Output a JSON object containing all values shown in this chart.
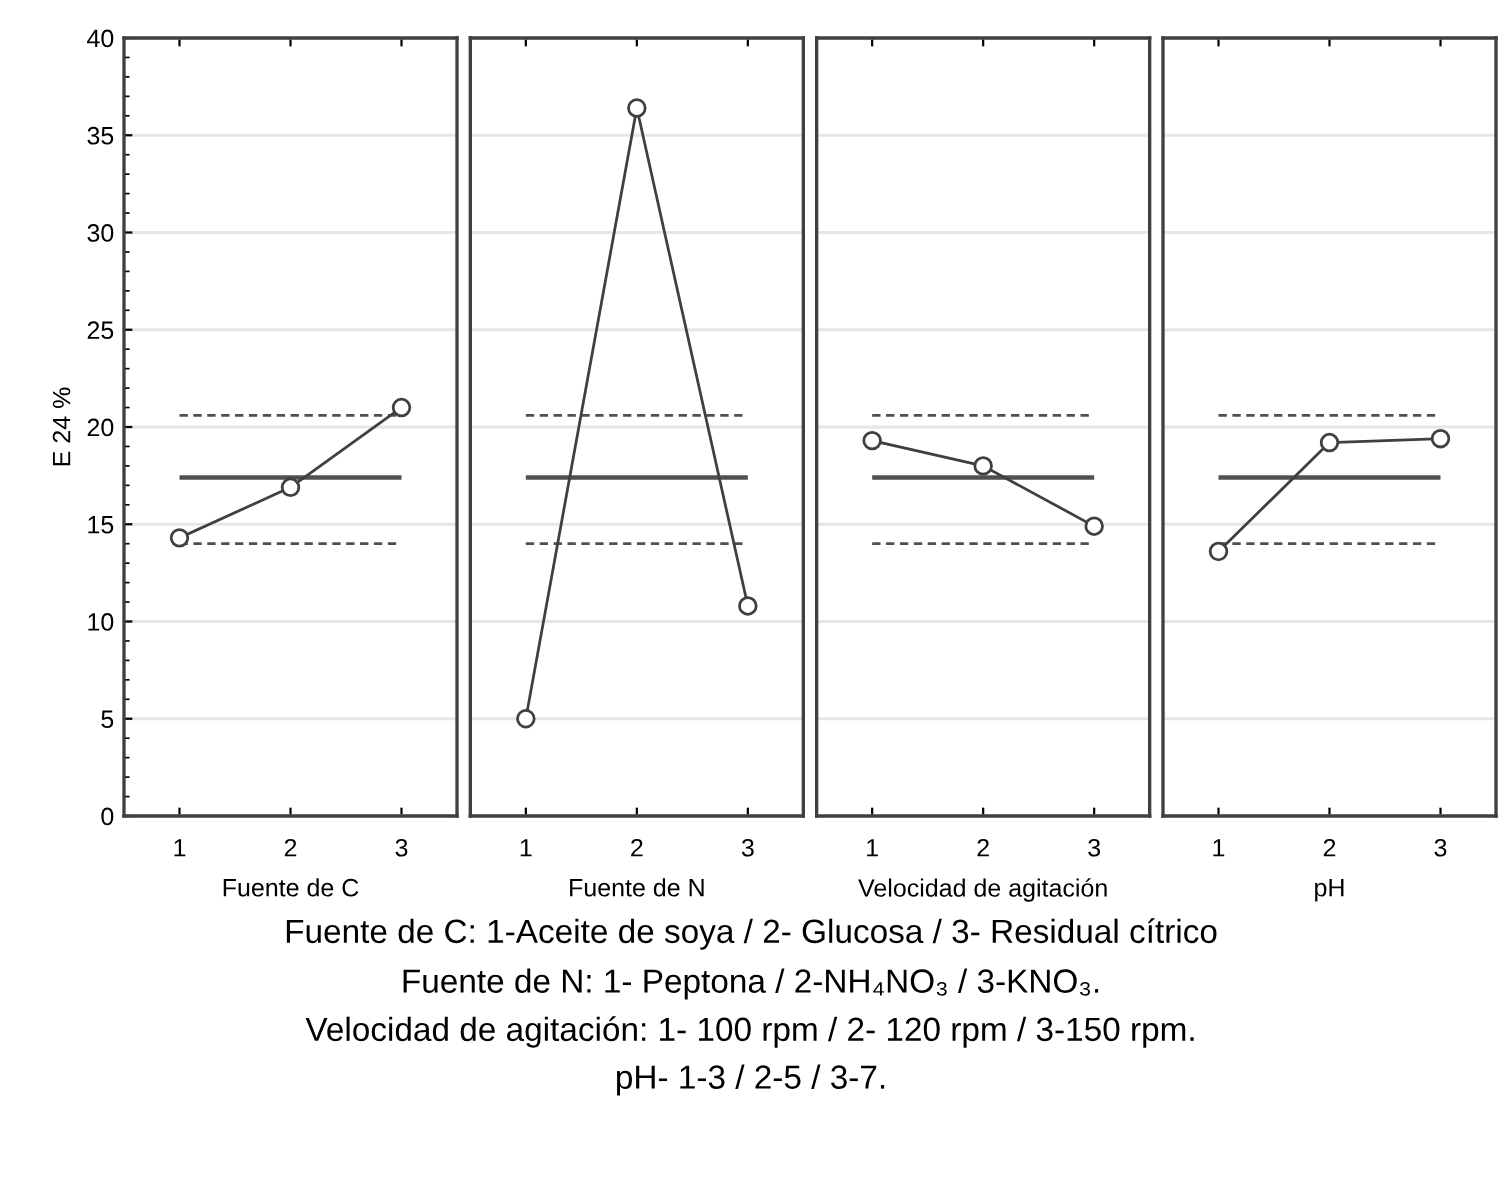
{
  "chart_data": [
    {
      "type": "line",
      "xlabel": "Fuente de C",
      "ylabel": "E 24 %",
      "categories": [
        "1",
        "2",
        "3"
      ],
      "series": [
        {
          "color": "#404040",
          "values": [
            14.3,
            16.9,
            21.0
          ]
        }
      ],
      "ylim": [
        0,
        40
      ],
      "yticks": [
        0,
        5,
        10,
        15,
        20,
        25,
        30,
        35,
        40
      ],
      "grid": "y",
      "marker": "circle",
      "line_style": "solid",
      "ref_lines": [
        {
          "axis": "y",
          "value": 17.4,
          "color": "#505050",
          "line_style": "solid"
        },
        {
          "axis": "y",
          "value": 20.6,
          "color": "#505050",
          "line_style": "dashed"
        },
        {
          "axis": "y",
          "value": 14.0,
          "color": "#505050",
          "line_style": "dashed"
        }
      ],
      "annotations": [
        "Fuente de C: 1-Aceite de soya / 2- Glucosa / 3- Residual cítrico",
        "Fuente de N: 1- Peptona / 2-NH₄NO₃ / 3-KNO₃.",
        "Velocidad de agitación: 1- 100 rpm / 2- 120 rpm / 3-150 rpm.",
        "pH- 1-3 / 2-5 / 3-7."
      ]
    },
    {
      "type": "line",
      "xlabel": "Fuente de N",
      "categories": [
        "1",
        "2",
        "3"
      ],
      "series": [
        {
          "color": "#404040",
          "values": [
            5.0,
            36.4,
            10.8
          ]
        }
      ],
      "ylim": [
        0,
        40
      ],
      "yticks": [
        0,
        5,
        10,
        15,
        20,
        25,
        30,
        35,
        40
      ],
      "tick_labels": "x",
      "grid": "y",
      "marker": "circle",
      "line_style": "solid",
      "ref_lines": [
        {
          "axis": "y",
          "value": 17.4,
          "color": "#505050",
          "line_style": "solid"
        },
        {
          "axis": "y",
          "value": 20.6,
          "color": "#505050",
          "line_style": "dashed"
        },
        {
          "axis": "y",
          "value": 14.0,
          "color": "#505050",
          "line_style": "dashed"
        }
      ]
    },
    {
      "type": "line",
      "xlabel": "Velocidad de agitación",
      "categories": [
        "1",
        "2",
        "3"
      ],
      "series": [
        {
          "color": "#404040",
          "values": [
            19.3,
            18.0,
            14.9
          ]
        }
      ],
      "ylim": [
        0,
        40
      ],
      "yticks": [
        0,
        5,
        10,
        15,
        20,
        25,
        30,
        35,
        40
      ],
      "tick_labels": "x",
      "grid": "y",
      "marker": "circle",
      "line_style": "solid",
      "ref_lines": [
        {
          "axis": "y",
          "value": 17.4,
          "color": "#505050",
          "line_style": "solid"
        },
        {
          "axis": "y",
          "value": 20.6,
          "color": "#505050",
          "line_style": "dashed"
        },
        {
          "axis": "y",
          "value": 14.0,
          "color": "#505050",
          "line_style": "dashed"
        }
      ]
    },
    {
      "type": "line",
      "xlabel": "pH",
      "categories": [
        "1",
        "2",
        "3"
      ],
      "series": [
        {
          "color": "#404040",
          "values": [
            13.6,
            19.2,
            19.4
          ]
        }
      ],
      "ylim": [
        0,
        40
      ],
      "yticks": [
        0,
        5,
        10,
        15,
        20,
        25,
        30,
        35,
        40
      ],
      "tick_labels": "x",
      "grid": "y",
      "marker": "circle",
      "line_style": "solid",
      "ref_lines": [
        {
          "axis": "y",
          "value": 17.4,
          "color": "#505050",
          "line_style": "solid"
        },
        {
          "axis": "y",
          "value": 20.6,
          "color": "#505050",
          "line_style": "dashed"
        },
        {
          "axis": "y",
          "value": 14.0,
          "color": "#505050",
          "line_style": "dashed"
        }
      ]
    }
  ]
}
